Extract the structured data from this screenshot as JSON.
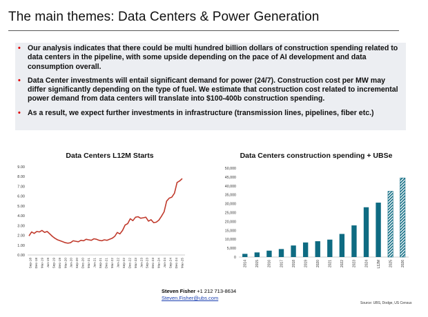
{
  "slide": {
    "title": "The main themes: Data Centers & Power Generation",
    "bullets": [
      "Our analysis indicates that there could be multi hundred billion dollars of construction spending related to data centers in the pipeline, with some upside depending on the pace of AI development and data consumption overall.",
      "Data Center investments will entail significant demand for power (24/7). Construction cost per MW may differ significantly depending on the type of fuel. We estimate that construction cost related to incremental power demand from data centers will translate into $100-400b construction spending.",
      "As a result, we expect further investments in infrastructure (transmission lines, pipelines, fiber etc.)"
    ],
    "bullet_color": "#e00000",
    "bullet_box_color": "#eceef2"
  },
  "contact": {
    "name": "Steven Fisher",
    "phone": " +1 212 713-8634",
    "email": "Steven.Fisher@ubs.com"
  },
  "source": "Source: UBS, Dodge, US Census",
  "chart_data": [
    {
      "type": "line",
      "title": "Data Centers L12M Starts",
      "color": "#c0392b",
      "ylim": [
        0,
        9
      ],
      "yticks": [
        "0.00",
        "1.00",
        "2.00",
        "3.00",
        "4.00",
        "5.00",
        "6.00",
        "7.00",
        "8.00",
        "9.00"
      ],
      "xticks": [
        "Sep-18",
        "Dec-18",
        "Mar-19",
        "Jun-19",
        "Sep-19",
        "Dec-19",
        "Mar-20",
        "Jun-20",
        "Sep-20",
        "Dec-20",
        "Mar-21",
        "Jun-21",
        "Sep-21",
        "Dec-21",
        "Mar-22",
        "Jun-22",
        "Sep-22",
        "Dec-22",
        "Mar-23",
        "Jun-23",
        "Sep-23",
        "Dec-23",
        "Mar-24",
        "Jun-24",
        "Sep-24",
        "Dec-24",
        "Mar-25"
      ],
      "values": [
        1.95,
        2.35,
        2.2,
        2.4,
        2.35,
        2.5,
        2.3,
        2.4,
        2.15,
        1.9,
        1.7,
        1.55,
        1.45,
        1.35,
        1.25,
        1.2,
        1.25,
        1.45,
        1.4,
        1.35,
        1.5,
        1.45,
        1.6,
        1.55,
        1.5,
        1.65,
        1.6,
        1.5,
        1.45,
        1.55,
        1.5,
        1.6,
        1.7,
        1.9,
        2.3,
        2.15,
        2.5,
        3.05,
        3.2,
        3.7,
        3.5,
        3.85,
        3.9,
        3.75,
        3.8,
        3.85,
        3.45,
        3.6,
        3.3,
        3.35,
        3.55,
        3.95,
        4.4,
        5.5,
        5.8,
        5.9,
        6.3,
        7.4,
        7.55,
        7.8
      ]
    },
    {
      "type": "bar",
      "title": "Data Centers construction spending + UBSe",
      "color": "#0e6b82",
      "ylim": [
        0,
        50000
      ],
      "yticks": [
        "0",
        "5,000",
        "10,000",
        "15,000",
        "20,000",
        "25,000",
        "30,000",
        "35,000",
        "40,000",
        "45,000",
        "50,000"
      ],
      "categories": [
        "2014",
        "2015",
        "2016",
        "2017",
        "2018",
        "2019",
        "2020",
        "2021",
        "2022",
        "2023",
        "2024",
        "L12M",
        "2025",
        "2026"
      ],
      "values": [
        1800,
        2600,
        3600,
        4500,
        6500,
        8200,
        8900,
        9800,
        13000,
        17800,
        28000,
        30600,
        37000,
        44500
      ],
      "estimate_categories": [
        "2025",
        "2026"
      ]
    }
  ]
}
